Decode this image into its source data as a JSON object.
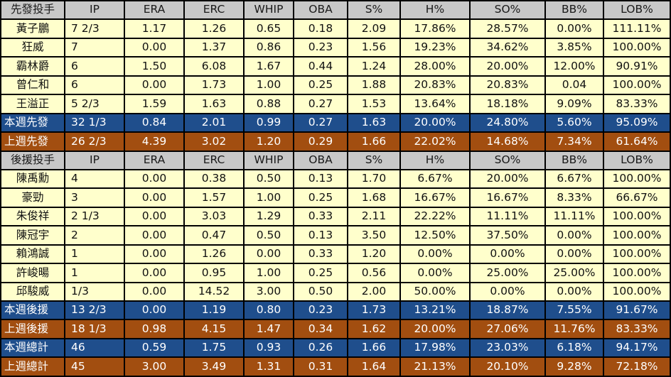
{
  "columns": [
    "IP",
    "ERA",
    "ERC",
    "WHIP",
    "OBA",
    "S%",
    "H%",
    "SO%",
    "BB%",
    "LOB%"
  ],
  "sections": [
    {
      "header_label": "先發投手",
      "players": [
        {
          "name": "黃子鵬",
          "values": [
            "7 2/3",
            "1.17",
            "1.26",
            "0.65",
            "0.18",
            "2.09",
            "17.86%",
            "28.57%",
            "0.00%",
            "111.11%"
          ]
        },
        {
          "name": "狂威",
          "values": [
            "7",
            "0.00",
            "1.37",
            "0.86",
            "0.23",
            "1.56",
            "19.23%",
            "34.62%",
            "3.85%",
            "100.00%"
          ]
        },
        {
          "name": "霸林爵",
          "values": [
            "6",
            "1.50",
            "6.08",
            "1.67",
            "0.44",
            "1.24",
            "28.00%",
            "20.00%",
            "12.00%",
            "90.91%"
          ]
        },
        {
          "name": "曾仁和",
          "values": [
            "6",
            "0.00",
            "1.73",
            "1.00",
            "0.25",
            "1.88",
            "20.83%",
            "20.83%",
            "0.04",
            "100.00%"
          ]
        },
        {
          "name": "王溢正",
          "values": [
            "5 2/3",
            "1.59",
            "1.63",
            "0.88",
            "0.27",
            "1.53",
            "13.64%",
            "18.18%",
            "9.09%",
            "83.33%"
          ]
        }
      ],
      "totals": [
        {
          "kind": "week",
          "label": "本週先發",
          "values": [
            "32 1/3",
            "0.84",
            "2.01",
            "0.99",
            "0.27",
            "1.63",
            "20.00%",
            "24.80%",
            "5.60%",
            "95.09%"
          ]
        },
        {
          "kind": "prev",
          "label": "上週先發",
          "values": [
            "26 2/3",
            "4.39",
            "3.02",
            "1.20",
            "0.29",
            "1.66",
            "22.02%",
            "14.68%",
            "7.34%",
            "61.64%"
          ]
        }
      ]
    },
    {
      "header_label": "後援投手",
      "players": [
        {
          "name": "陳禹勳",
          "values": [
            "4",
            "0.00",
            "0.38",
            "0.50",
            "0.13",
            "1.70",
            "6.67%",
            "20.00%",
            "6.67%",
            "100.00%"
          ]
        },
        {
          "name": "豪勁",
          "values": [
            "3",
            "0.00",
            "1.57",
            "1.00",
            "0.25",
            "1.68",
            "16.67%",
            "16.67%",
            "8.33%",
            "66.67%"
          ]
        },
        {
          "name": "朱俊祥",
          "values": [
            "2 1/3",
            "0.00",
            "3.03",
            "1.29",
            "0.33",
            "2.11",
            "22.22%",
            "11.11%",
            "11.11%",
            "100.00%"
          ]
        },
        {
          "name": "陳冠宇",
          "values": [
            "2",
            "0.00",
            "0.47",
            "0.50",
            "0.13",
            "3.50",
            "12.50%",
            "37.50%",
            "0.00%",
            "100.00%"
          ]
        },
        {
          "name": "賴鴻誠",
          "values": [
            "1",
            "0.00",
            "1.26",
            "0.00",
            "0.33",
            "1.20",
            "0.00%",
            "0.00%",
            "0.00%",
            "100.00%"
          ]
        },
        {
          "name": "許峻暘",
          "values": [
            "1",
            "0.00",
            "0.95",
            "1.00",
            "0.25",
            "0.56",
            "0.00%",
            "25.00%",
            "25.00%",
            "100.00%"
          ]
        },
        {
          "name": "邱駿威",
          "values": [
            "1/3",
            "0.00",
            "14.52",
            "3.00",
            "0.50",
            "2.00",
            "50.00%",
            "0.00%",
            "0.00%",
            "100.00%"
          ]
        }
      ],
      "totals": [
        {
          "kind": "week",
          "label": "本週後援",
          "values": [
            "13 2/3",
            "0.00",
            "1.19",
            "0.80",
            "0.23",
            "1.73",
            "13.21%",
            "18.87%",
            "7.55%",
            "91.67%"
          ]
        },
        {
          "kind": "prev",
          "label": "上週後援",
          "values": [
            "18 1/3",
            "0.98",
            "4.15",
            "1.47",
            "0.34",
            "1.62",
            "20.00%",
            "27.06%",
            "11.76%",
            "83.33%"
          ]
        },
        {
          "kind": "week",
          "label": "本週總計",
          "values": [
            "46",
            "0.59",
            "1.75",
            "0.93",
            "0.26",
            "1.66",
            "17.98%",
            "23.03%",
            "6.18%",
            "94.17%"
          ]
        },
        {
          "kind": "prev",
          "label": "上週總計",
          "values": [
            "45",
            "3.00",
            "3.49",
            "1.31",
            "0.31",
            "1.64",
            "21.13%",
            "20.10%",
            "9.28%",
            "72.18%"
          ]
        }
      ]
    }
  ]
}
